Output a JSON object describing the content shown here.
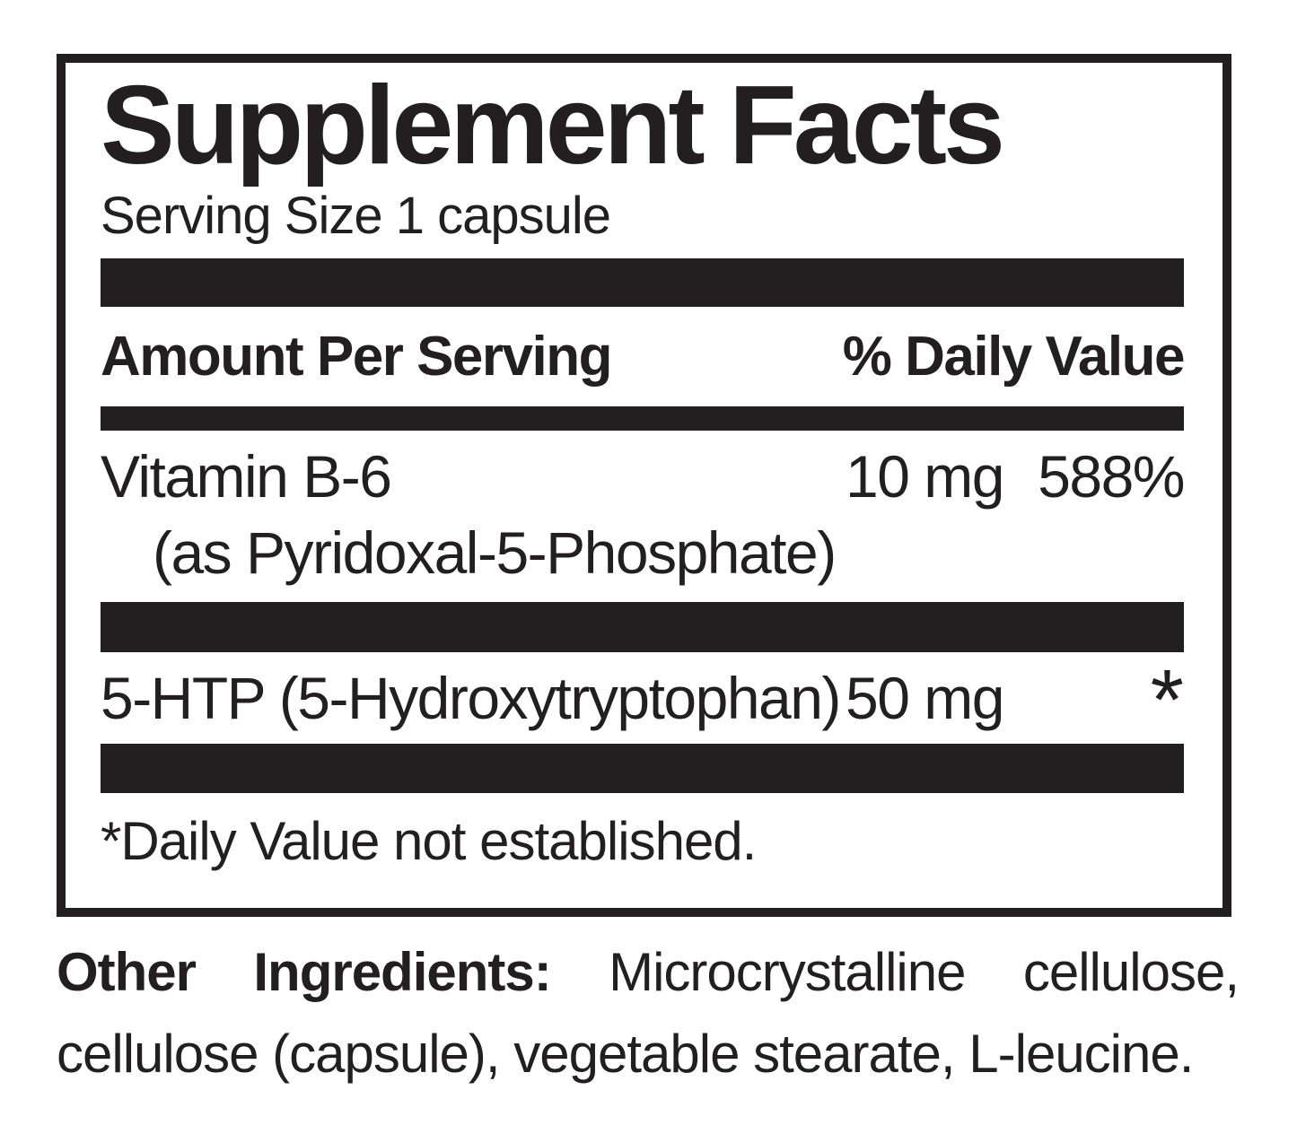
{
  "label": {
    "title": "Supplement Facts",
    "serving_size": "Serving Size 1 capsule",
    "columns": {
      "amount_header": "Amount Per Serving",
      "dv_header": "% Daily Value"
    },
    "rows": [
      {
        "name": "Vitamin B-6",
        "detail": "(as Pyridoxal-5-Phosphate)",
        "amount": "10 mg",
        "dv": "588%"
      },
      {
        "name": "5-HTP (5-Hydroxytryptophan)",
        "amount": "50 mg",
        "dv": "*"
      }
    ],
    "footnote": "*Daily Value not established.",
    "colors": {
      "ink": "#231f20",
      "background": "#ffffff"
    }
  },
  "other_ingredients": {
    "bold_label": "Other Ingredients:",
    "line1_rest": "Microcrystalline cellulose,",
    "line2": "cellulose (capsule), vegetable stearate, L-leucine."
  }
}
